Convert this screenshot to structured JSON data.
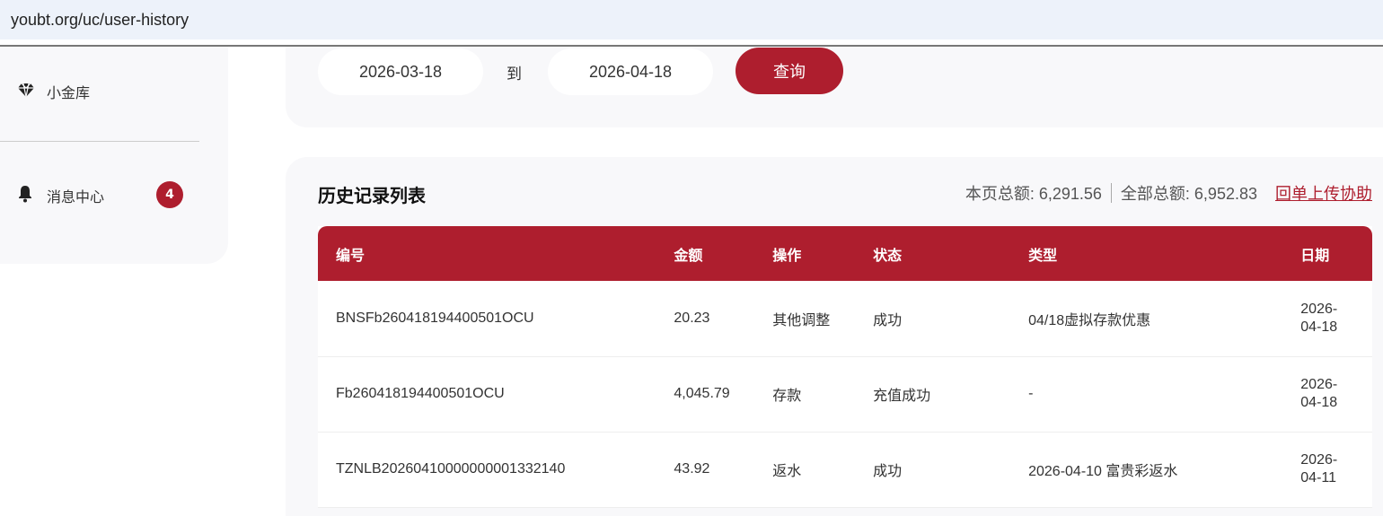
{
  "browser": {
    "url": "youbt.org/uc/user-history"
  },
  "sidebar": {
    "items": [
      {
        "label": "小金库",
        "icon": "gem-icon"
      },
      {
        "label": "消息中心",
        "icon": "bell-icon",
        "badge": "4"
      }
    ]
  },
  "filter": {
    "start_date": "2026-03-18",
    "to_label": "到",
    "end_date": "2026-04-18",
    "query_label": "查询"
  },
  "list": {
    "title": "历史记录列表",
    "page_total": "本页总额: 6,291.56",
    "all_total": "全部总额: 6,952.83",
    "help_link": "回单上传协助",
    "columns": [
      "编号",
      "金额",
      "操作",
      "状态",
      "类型",
      "日期"
    ],
    "rows": [
      [
        "BNSFb260418194400501OCU",
        "20.23",
        "其他调整",
        "成功",
        "04/18虚拟存款优惠",
        "2026-04-18"
      ],
      [
        "Fb260418194400501OCU",
        "4,045.79",
        "存款",
        "充值成功",
        "-",
        "2026-04-18"
      ],
      [
        "TZNLB20260410000000001332140",
        "43.92",
        "返水",
        "成功",
        "2026-04-10 富贵彩返水",
        "2026-04-11"
      ]
    ]
  },
  "colors": {
    "accent": "#ae1e2e",
    "panel": "#f8f8fa",
    "urlbar": "#edf2fa"
  }
}
